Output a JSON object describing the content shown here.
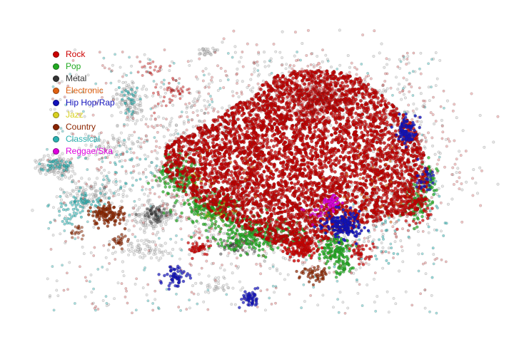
{
  "chart_data": {
    "type": "scatter",
    "title": "",
    "xlabel": "",
    "ylabel": "",
    "axes_visible": false,
    "grid": false,
    "legend_position": "top-left",
    "series": [
      {
        "name": "Rock",
        "color": "#cc0000"
      },
      {
        "name": "Pop",
        "color": "#22aa22"
      },
      {
        "name": "Metal",
        "color": "#333333"
      },
      {
        "name": "Electronic",
        "color": "#e06010"
      },
      {
        "name": "Hip Hop/Rap",
        "color": "#1111bb"
      },
      {
        "name": "Jazz",
        "color": "#d8d020"
      },
      {
        "name": "Country",
        "color": "#8b2500"
      },
      {
        "name": "Classical",
        "color": "#2ab0b0"
      },
      {
        "name": "Reggae/Ska",
        "color": "#dd00dd"
      }
    ]
  }
}
